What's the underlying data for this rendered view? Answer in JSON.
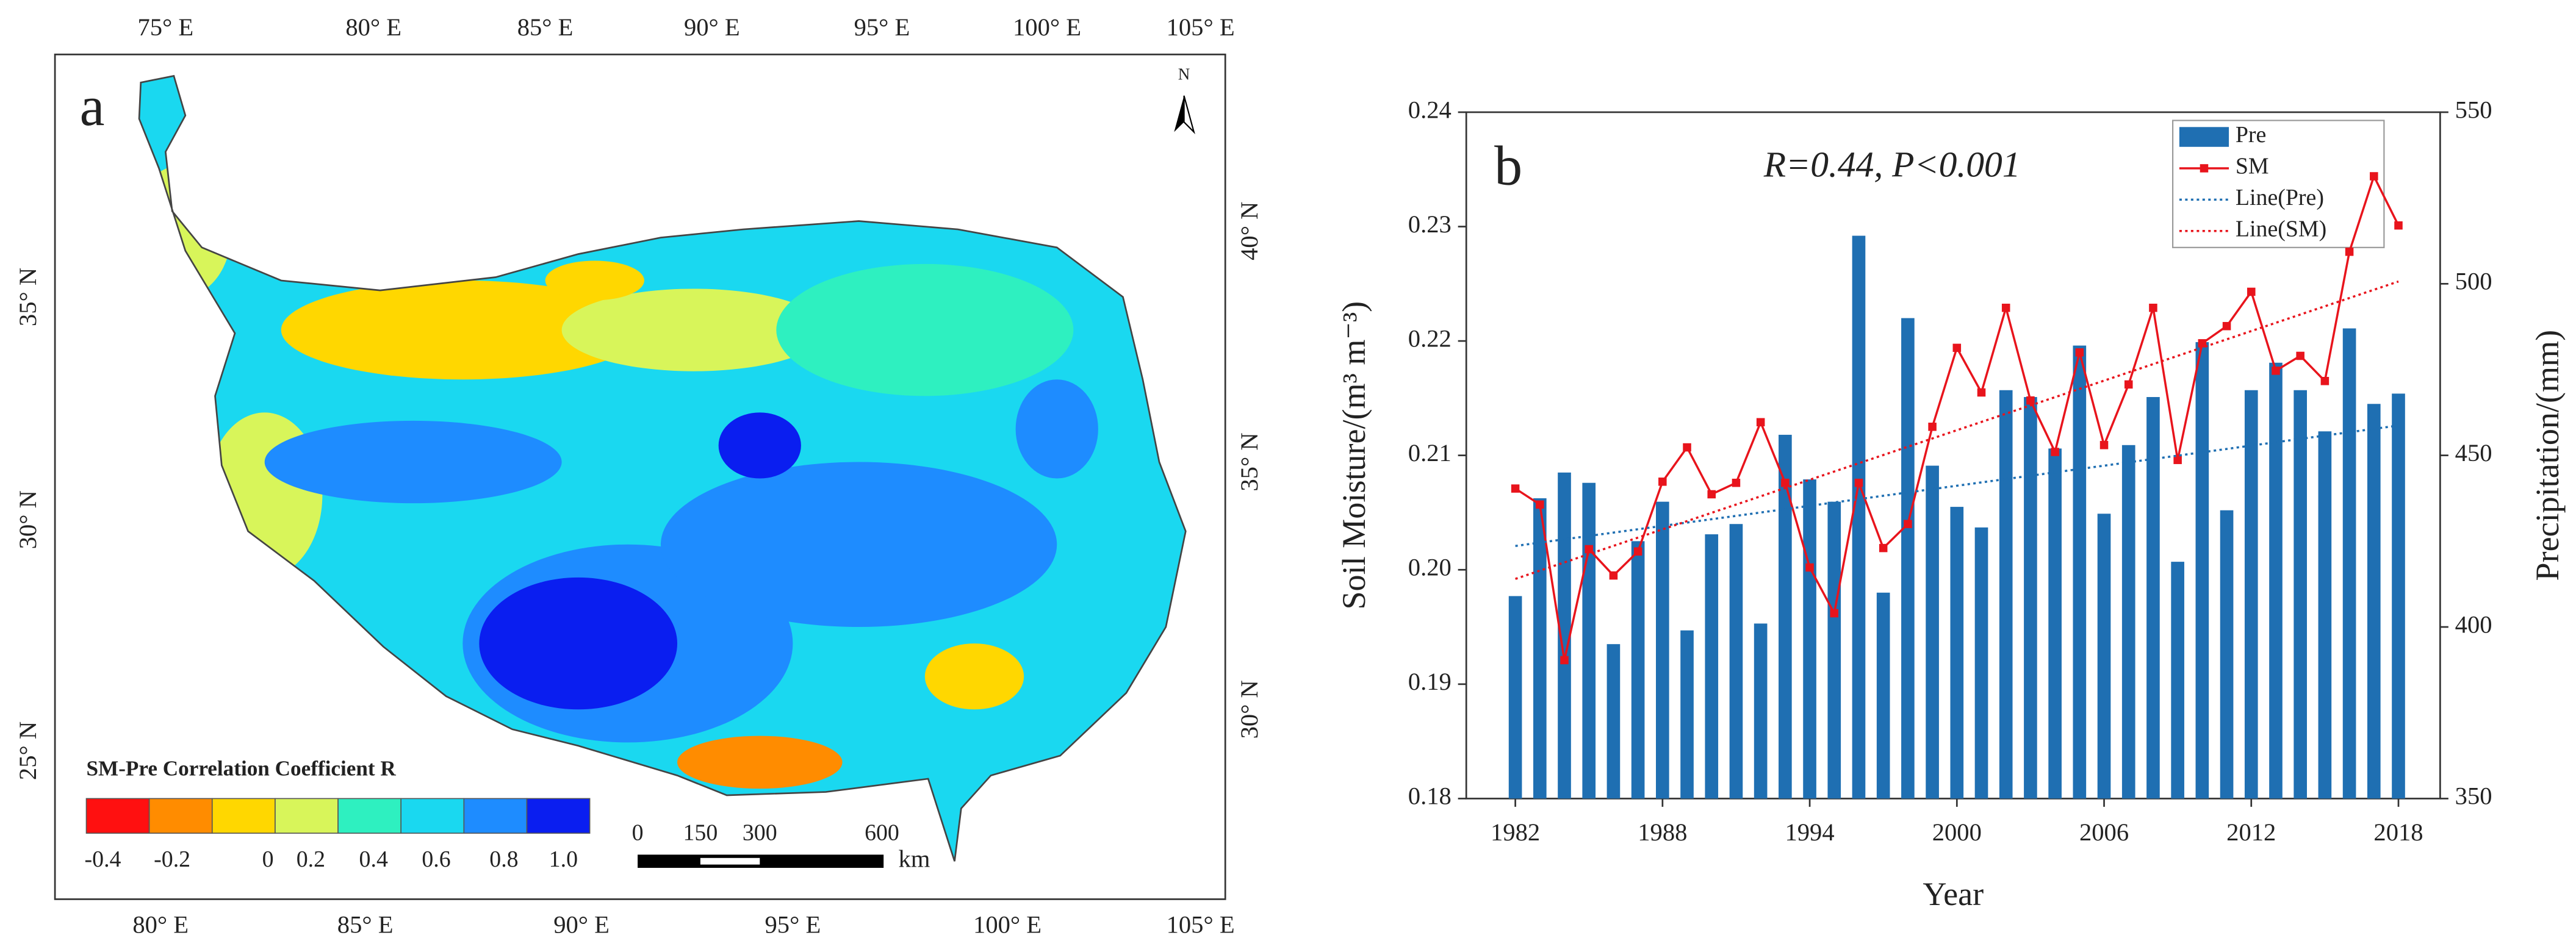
{
  "map": {
    "panel_label": "a",
    "top_lon_labels": [
      "75° E",
      "80° E",
      "85° E",
      "90° E",
      "95° E",
      "100° E",
      "105° E"
    ],
    "bottom_lon_labels": [
      "80° E",
      "85° E",
      "90° E",
      "95° E",
      "100° E",
      "105° E"
    ],
    "left_lat_labels": [
      "25° N",
      "30° N",
      "35° N"
    ],
    "right_lat_labels": [
      "30° N",
      "35° N",
      "40° N"
    ],
    "north": "N",
    "legend_title": "SM-Pre Correlation Coefficient R",
    "legend_labels": [
      "-0.4",
      "-0.2",
      "0",
      "0.2",
      "0.4",
      "0.6",
      "0.8",
      "1.0"
    ],
    "legend_colors": [
      "#ff1010",
      "#ff8c00",
      "#ffd700",
      "#d8f55a",
      "#2ef0c0",
      "#1ad8f0",
      "#1e8cff",
      "#0a1ef0"
    ],
    "scale_labels": [
      "0",
      "150",
      "300",
      "600"
    ],
    "scale_unit": "km"
  },
  "chart_data": {
    "type": "bar_line",
    "panel_label": "b",
    "annotation": "R=0.44, P<0.001",
    "x_label": "Year",
    "y_label": "Soil Moisture/(m³ m⁻³)",
    "y2_label": "Precipitation/(mm)",
    "x": [
      1982,
      1983,
      1984,
      1985,
      1986,
      1987,
      1988,
      1989,
      1990,
      1991,
      1992,
      1993,
      1994,
      1995,
      1996,
      1997,
      1998,
      1999,
      2000,
      2001,
      2002,
      2003,
      2004,
      2005,
      2006,
      2007,
      2008,
      2009,
      2010,
      2011,
      2012,
      2013,
      2014,
      2015,
      2016,
      2017,
      2018
    ],
    "xlim": [
      1980,
      2019.7
    ],
    "xticks": [
      1982,
      1988,
      1994,
      2000,
      2006,
      2012,
      2018
    ],
    "ylim": [
      0.18,
      0.24
    ],
    "yticks": [
      0.18,
      0.19,
      {
        "value": 0.2,
        "label": "0.20"
      },
      0.21,
      0.22,
      0.23,
      0.24
    ],
    "y2lim": [
      350,
      550
    ],
    "y2ticks": [
      350,
      400,
      450,
      500,
      550
    ],
    "series": [
      {
        "name": "Pre",
        "color": "#1f6fb2",
        "kind": "bar",
        "axis": "y2",
        "values": [
          409,
          437.5,
          445,
          442,
          395,
          425,
          436.5,
          399,
          427,
          430,
          401,
          456,
          443,
          436.5,
          514,
          410,
          490,
          447,
          435,
          429,
          469,
          467,
          452,
          482,
          433,
          453,
          467,
          419,
          483,
          434,
          469,
          477,
          469,
          457,
          487,
          465,
          468
        ]
      },
      {
        "name": "SM",
        "color": "#e8141c",
        "kind": "line",
        "values": [
          0.2071,
          0.2057,
          0.1921,
          0.2018,
          0.1995,
          0.2016,
          0.2077,
          0.2107,
          0.2066,
          0.2076,
          0.2129,
          0.2076,
          0.2002,
          0.1962,
          0.2076,
          0.2019,
          0.204,
          0.2125,
          0.2194,
          0.2155,
          0.2229,
          0.2148,
          0.2103,
          0.219,
          0.2109,
          0.2162,
          0.2229,
          0.2096,
          0.2198,
          0.2213,
          0.2243,
          0.2174,
          0.2187,
          0.2165,
          0.2278,
          0.2344,
          0.2301
        ]
      },
      {
        "name": "Line(Pre)",
        "color": "#1f6fb2",
        "kind": "trend",
        "axis": "y2",
        "x": [
          1982,
          2018
        ],
        "values": [
          423.6,
          458.7
        ]
      },
      {
        "name": "Line(SM)",
        "color": "#e8141c",
        "kind": "trend",
        "x": [
          1982,
          2018
        ],
        "values": [
          0.1992,
          0.2252
        ]
      }
    ]
  }
}
